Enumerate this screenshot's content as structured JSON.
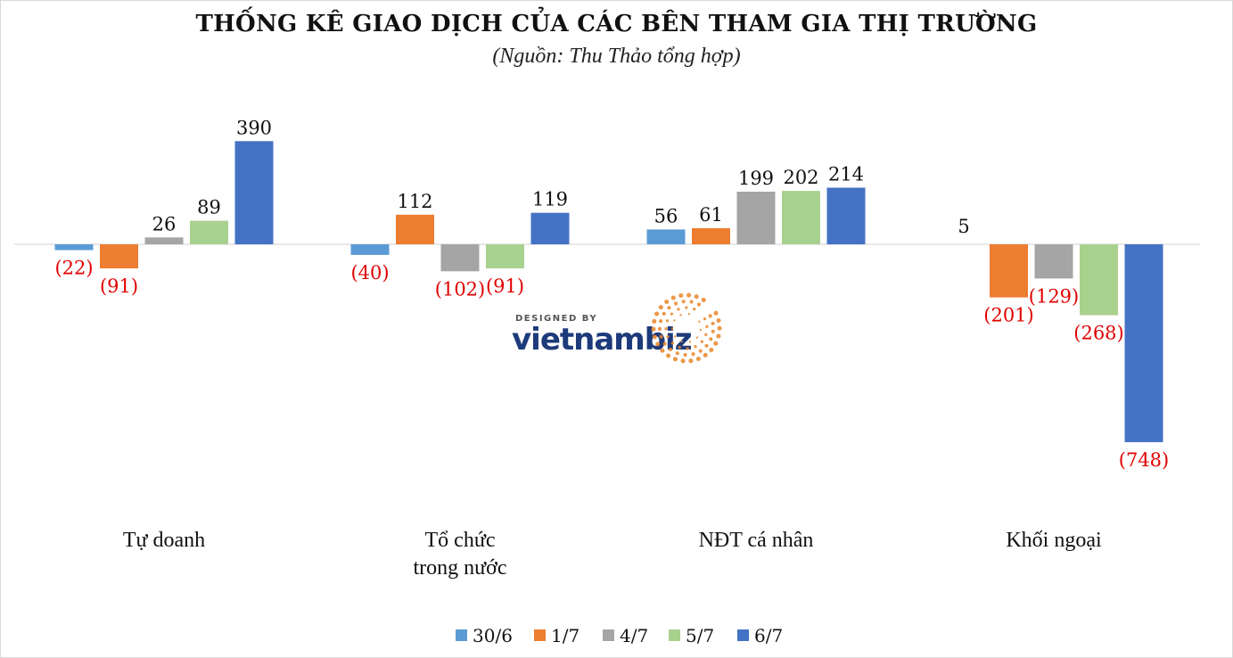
{
  "title": "THỐNG KÊ GIAO DỊCH CỦA CÁC BÊN THAM GIA THỊ TRƯỜNG",
  "subtitle": "(Nguồn: Thu Thảo tổng hợp)",
  "watermark": {
    "small": "DESIGNED BY",
    "brand": "vietnambiz"
  },
  "colors": {
    "positive_label": "#111111",
    "negative_label": "#e00000",
    "axis": "#d9d9d9"
  },
  "chart_data": {
    "type": "bar",
    "categories": [
      [
        "Tự doanh"
      ],
      [
        "Tổ chức",
        "trong nước"
      ],
      [
        "NĐT cá nhân"
      ],
      [
        "Khối ngoại"
      ]
    ],
    "series": [
      {
        "name": "30/6",
        "color": "#5b9bd5",
        "values": [
          -22,
          -40,
          56,
          null
        ],
        "labels": [
          "(22)",
          "(40)",
          "56",
          ""
        ]
      },
      {
        "name": "1/7",
        "color": "#ed7d31",
        "values": [
          -91,
          112,
          61,
          -201
        ],
        "labels": [
          "(91)",
          "112",
          "61",
          "(201)"
        ]
      },
      {
        "name": "4/7",
        "color": "#a5a5a5",
        "values": [
          26,
          -102,
          199,
          -129
        ],
        "labels": [
          "26",
          "(102)",
          "199",
          "(129)"
        ]
      },
      {
        "name": "5/7",
        "color": "#a9d18e",
        "values": [
          89,
          -91,
          202,
          -268
        ],
        "labels": [
          "89",
          "(91)",
          "202",
          "(268)"
        ]
      },
      {
        "name": "6/7",
        "color": "#4472c4",
        "values": [
          390,
          119,
          214,
          -748
        ],
        "labels": [
          "390",
          "119",
          "214",
          "(748)"
        ]
      }
    ],
    "extra_labels": [
      {
        "category": 3,
        "text": "5"
      }
    ],
    "ylim": [
      -748,
      390
    ],
    "legend_position": "bottom",
    "grid": false
  }
}
